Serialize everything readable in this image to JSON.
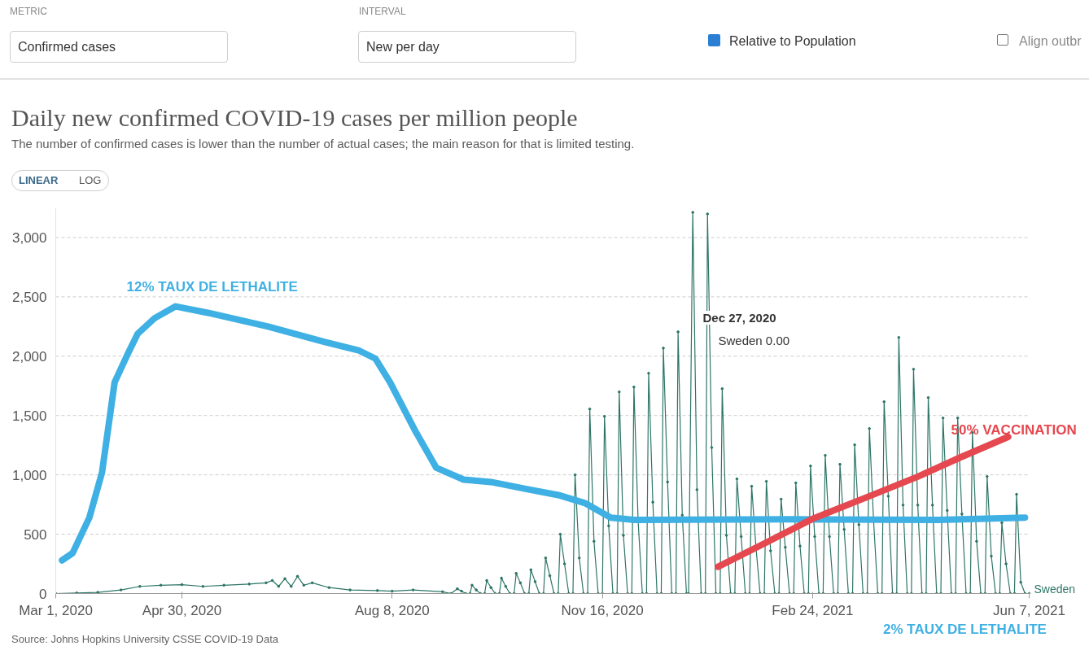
{
  "chart_data": {
    "type": "line",
    "title": "Daily new confirmed COVID-19 cases per million people",
    "subtitle": "The number of confirmed cases is lower than the number of actual cases; the main reason for that is limited testing.",
    "xlim": [
      "2020-03-01",
      "2021-06-07"
    ],
    "xticks": [
      {
        "value": "2020-03-01",
        "label": "Mar 1, 2020"
      },
      {
        "value": "2020-04-30",
        "label": "Apr 30, 2020"
      },
      {
        "value": "2020-08-08",
        "label": "Aug 8, 2020"
      },
      {
        "value": "2020-11-16",
        "label": "Nov 16, 2020"
      },
      {
        "value": "2021-02-24",
        "label": "Feb 24, 2021"
      },
      {
        "value": "2021-06-07",
        "label": "Jun 7, 2021"
      }
    ],
    "ylim": [
      0,
      3250
    ],
    "yticks": [
      0,
      500,
      {
        "value": 1000,
        "label": "1,000"
      },
      {
        "value": 1500,
        "label": "1,500"
      },
      {
        "value": 2000,
        "label": "2,000"
      },
      {
        "value": 2500,
        "label": "2,500"
      },
      {
        "value": 3000,
        "label": "3,000"
      }
    ],
    "grid": "y",
    "marker": "circle",
    "line_style": "solid",
    "series": [
      {
        "name": "Sweden",
        "color": "#2c7566",
        "x": [
          "2020-03-01",
          "2020-03-11",
          "2020-03-21",
          "2020-04-01",
          "2020-04-10",
          "2020-04-20",
          "2020-04-30",
          "2020-05-10",
          "2020-05-20",
          "2020-06-01",
          "2020-06-09",
          "2020-06-12",
          "2020-06-15",
          "2020-06-18",
          "2020-06-21",
          "2020-06-24",
          "2020-06-27",
          "2020-07-01",
          "2020-07-09",
          "2020-07-19",
          "2020-08-01",
          "2020-08-08",
          "2020-08-18",
          "2020-09-01",
          "2020-09-05",
          "2020-09-08",
          "2020-09-10",
          "2020-09-12",
          "2020-09-14",
          "2020-09-15",
          "2020-09-17",
          "2020-09-19",
          "2020-09-21",
          "2020-09-22",
          "2020-09-24",
          "2020-09-26",
          "2020-09-28",
          "2020-09-29",
          "2020-10-01",
          "2020-10-03",
          "2020-10-05",
          "2020-10-06",
          "2020-10-08",
          "2020-10-10",
          "2020-10-12",
          "2020-10-13",
          "2020-10-15",
          "2020-10-17",
          "2020-10-19",
          "2020-10-20",
          "2020-10-22",
          "2020-10-24",
          "2020-10-26",
          "2020-10-27",
          "2020-10-29",
          "2020-10-31",
          "2020-11-02",
          "2020-11-03",
          "2020-11-05",
          "2020-11-07",
          "2020-11-09",
          "2020-11-10",
          "2020-11-12",
          "2020-11-14",
          "2020-11-16",
          "2020-11-17",
          "2020-11-19",
          "2020-11-21",
          "2020-11-23",
          "2020-11-24",
          "2020-11-26",
          "2020-11-28",
          "2020-11-30",
          "2020-12-01",
          "2020-12-03",
          "2020-12-05",
          "2020-12-07",
          "2020-12-08",
          "2020-12-10",
          "2020-12-12",
          "2020-12-14",
          "2020-12-15",
          "2020-12-17",
          "2020-12-19",
          "2020-12-21",
          "2020-12-22",
          "2020-12-24",
          "2020-12-26",
          "2020-12-27",
          "2020-12-29",
          "2020-12-31",
          "2021-01-02",
          "2021-01-04",
          "2021-01-05",
          "2021-01-07",
          "2021-01-09",
          "2021-01-11",
          "2021-01-12",
          "2021-01-14",
          "2021-01-16",
          "2021-01-18",
          "2021-01-19",
          "2021-01-21",
          "2021-01-23",
          "2021-01-25",
          "2021-01-26",
          "2021-01-28",
          "2021-01-30",
          "2021-02-01",
          "2021-02-02",
          "2021-02-04",
          "2021-02-06",
          "2021-02-08",
          "2021-02-09",
          "2021-02-11",
          "2021-02-13",
          "2021-02-15",
          "2021-02-16",
          "2021-02-18",
          "2021-02-20",
          "2021-02-22",
          "2021-02-23",
          "2021-02-25",
          "2021-02-27",
          "2021-03-01",
          "2021-03-02",
          "2021-03-04",
          "2021-03-06",
          "2021-03-08",
          "2021-03-09",
          "2021-03-11",
          "2021-03-13",
          "2021-03-15",
          "2021-03-16",
          "2021-03-18",
          "2021-03-20",
          "2021-03-22",
          "2021-03-23",
          "2021-03-25",
          "2021-03-27",
          "2021-03-29",
          "2021-03-30",
          "2021-04-01",
          "2021-04-03",
          "2021-04-05",
          "2021-04-06",
          "2021-04-08",
          "2021-04-10",
          "2021-04-12",
          "2021-04-13",
          "2021-04-15",
          "2021-04-17",
          "2021-04-19",
          "2021-04-20",
          "2021-04-22",
          "2021-04-24",
          "2021-04-26",
          "2021-04-27",
          "2021-04-29",
          "2021-05-01",
          "2021-05-03",
          "2021-05-04",
          "2021-05-06",
          "2021-05-08",
          "2021-05-10",
          "2021-05-11",
          "2021-05-13",
          "2021-05-15",
          "2021-05-17",
          "2021-05-18",
          "2021-05-20",
          "2021-05-22",
          "2021-05-24",
          "2021-05-25",
          "2021-05-27",
          "2021-05-29",
          "2021-05-31",
          "2021-06-01",
          "2021-06-03",
          "2021-06-05",
          "2021-06-07"
        ],
        "values": [
          0,
          5,
          10,
          30,
          60,
          70,
          75,
          60,
          70,
          80,
          90,
          110,
          60,
          125,
          60,
          145,
          70,
          90,
          50,
          30,
          25,
          20,
          30,
          15,
          0,
          40,
          20,
          0,
          0,
          70,
          30,
          0,
          0,
          110,
          50,
          0,
          0,
          130,
          60,
          0,
          0,
          170,
          90,
          0,
          0,
          200,
          100,
          0,
          0,
          300,
          150,
          0,
          0,
          500,
          250,
          0,
          0,
          1000,
          300,
          0,
          0,
          1555,
          440,
          0,
          0,
          1493,
          570,
          0,
          0,
          1699,
          490,
          0,
          0,
          1740,
          610,
          0,
          0,
          1856,
          770,
          0,
          0,
          2068,
          940,
          0,
          0,
          2205,
          660,
          0,
          0,
          3212,
          875,
          0,
          0,
          3199,
          1230,
          0,
          0,
          1726,
          490,
          0,
          0,
          966,
          480,
          0,
          0,
          904,
          400,
          0,
          0,
          945,
          360,
          0,
          0,
          795,
          390,
          0,
          0,
          932,
          400,
          0,
          0,
          1075,
          480,
          0,
          0,
          1164,
          480,
          0,
          0,
          1089,
          540,
          0,
          0,
          1253,
          580,
          0,
          0,
          1390,
          610,
          0,
          0,
          1616,
          820,
          0,
          0,
          2158,
          745,
          0,
          0,
          1890,
          745,
          0,
          0,
          1651,
          745,
          0,
          0,
          1479,
          700,
          0,
          0,
          1479,
          670,
          0,
          0,
          1356,
          440,
          0,
          0,
          986,
          315,
          0,
          0,
          596,
          250,
          0,
          0,
          836,
          95,
          0,
          0
        ]
      },
      {
        "color": "#3fb0e3",
        "marker": "none",
        "x": [
          "2020-03-04",
          "2020-03-09",
          "2020-03-17",
          "2020-03-23",
          "2020-03-29",
          "2020-04-04",
          "2020-04-09",
          "2020-04-17",
          "2020-04-27",
          "2020-05-14",
          "2020-06-10",
          "2020-07-07",
          "2020-07-23",
          "2020-07-31",
          "2020-08-07",
          "2020-08-19",
          "2020-08-29",
          "2020-09-11",
          "2020-09-24",
          "2020-10-11",
          "2020-10-26",
          "2020-11-08",
          "2020-11-20",
          "2020-12-01",
          "2021-02-13",
          "2021-04-25",
          "2021-06-05"
        ],
        "values": [
          280,
          340,
          640,
          1020,
          1780,
          2010,
          2190,
          2320,
          2420,
          2360,
          2250,
          2120,
          2050,
          1980,
          1780,
          1370,
          1060,
          960,
          940,
          880,
          830,
          760,
          640,
          620,
          625,
          620,
          640
        ]
      },
      {
        "color": "#e5484f",
        "marker": "none",
        "x": [
          "2021-01-10",
          "2021-02-02",
          "2021-02-24",
          "2021-03-23",
          "2021-04-15",
          "2021-05-05",
          "2021-05-28"
        ],
        "values": [
          225,
          430,
          630,
          820,
          985,
          1145,
          1320
        ]
      }
    ],
    "annotations": [
      "METRIC",
      "Confirmed cases",
      "INTERVAL",
      "New per day",
      "Relative to Population",
      "Align outbr",
      "LINEAR",
      "LOG",
      "12% TAUX DE LETHALITE",
      "50% VACCINATION",
      "2% TAUX DE LETHALITE",
      "Dec 27, 2020",
      "Sweden 0.00",
      "Source: Johns Hopkins University CSSE COVID-19 Data"
    ]
  }
}
